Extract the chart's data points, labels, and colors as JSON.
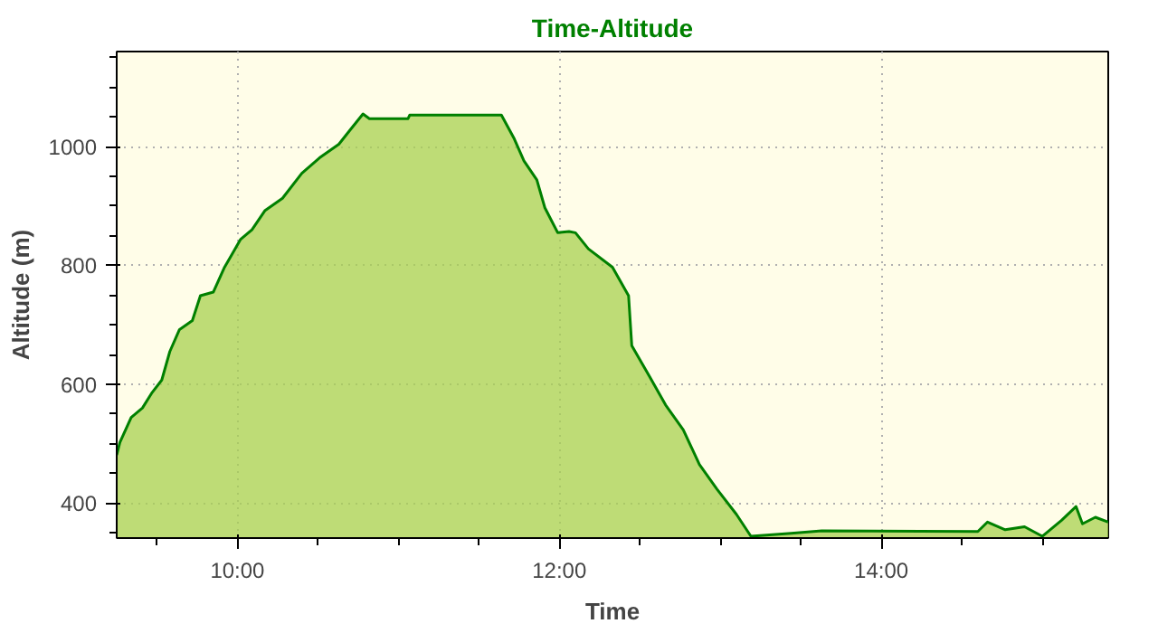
{
  "chart_data": {
    "type": "area",
    "title": "Time-Altitude",
    "xlabel": "Time",
    "ylabel": "Altitude (m)",
    "xlim": [
      9.25,
      15.41
    ],
    "ylim": [
      341,
      1160
    ],
    "xticks": [
      {
        "value": 10,
        "label": "10:00"
      },
      {
        "value": 12,
        "label": "12:00"
      },
      {
        "value": 14,
        "label": "14:00"
      }
    ],
    "yticks": [
      400,
      600,
      800,
      1000
    ],
    "grid": true,
    "series": [
      {
        "color": "#008000",
        "x": [
          9.25,
          9.27,
          9.34,
          9.41,
          9.47,
          9.53,
          9.58,
          9.64,
          9.72,
          9.77,
          9.85,
          9.92,
          10.02,
          10.09,
          10.17,
          10.28,
          10.4,
          10.51,
          10.63,
          10.7,
          10.78,
          10.82,
          11.06,
          11.07,
          11.64,
          11.72,
          11.78,
          11.86,
          11.91,
          11.99,
          12.06,
          12.1,
          12.18,
          12.33,
          12.43,
          12.45,
          12.56,
          12.66,
          12.77,
          12.87,
          12.98,
          13.1,
          13.19,
          13.44,
          13.63,
          14.6,
          14.66,
          14.77,
          14.89,
          15.0,
          15.12,
          15.21,
          15.25,
          15.33,
          15.41
        ],
        "values": [
          481,
          502,
          544,
          560,
          586,
          607,
          655,
          692,
          707,
          749,
          755,
          797,
          844,
          860,
          892,
          913,
          955,
          981,
          1004,
          1028,
          1055,
          1047,
          1047,
          1053,
          1053,
          1013,
          976,
          944,
          897,
          855,
          857,
          855,
          828,
          797,
          749,
          665,
          613,
          565,
          523,
          465,
          423,
          381,
          344,
          349,
          353,
          352,
          368,
          355,
          360,
          344,
          371,
          394,
          365,
          376,
          368
        ]
      }
    ]
  }
}
